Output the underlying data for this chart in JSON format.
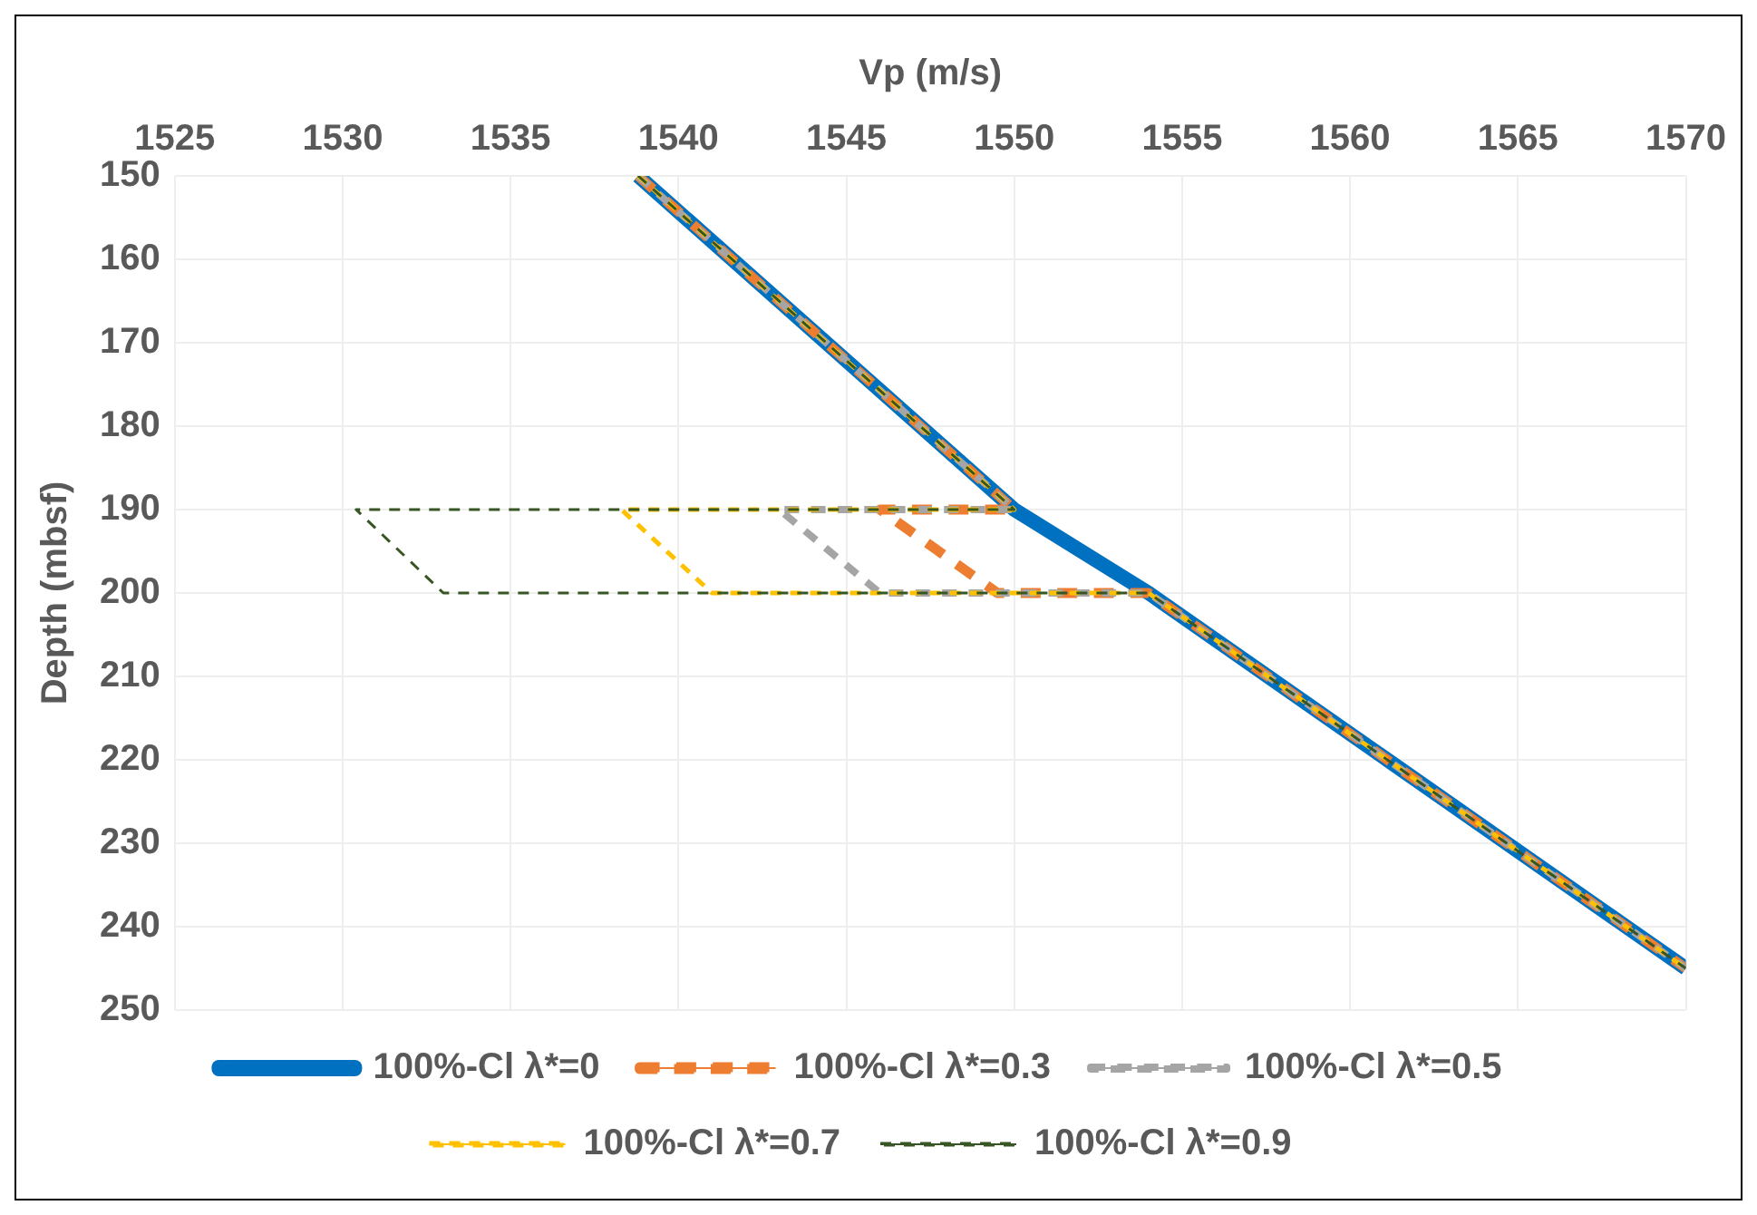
{
  "chart_data": {
    "type": "line",
    "xlabel": "Vp (m/s)",
    "ylabel": "Depth (mbsf)",
    "xlim": [
      1525,
      1570
    ],
    "xticks": [
      1525,
      1530,
      1535,
      1540,
      1545,
      1550,
      1555,
      1560,
      1565,
      1570
    ],
    "ylim": [
      250,
      150
    ],
    "yticks": [
      150,
      160,
      170,
      180,
      190,
      200,
      210,
      220,
      230,
      240,
      250
    ],
    "grid": true,
    "legend": "bottom",
    "marker": "none",
    "series": [
      {
        "name": "100%-Cl λ*=0",
        "color": "#0070c0",
        "line_style": "solid",
        "x": [
          1538.8,
          1550,
          1554,
          1570
        ],
        "values": [
          150,
          190,
          200,
          245
        ]
      },
      {
        "name": "100%-Cl λ*=0.3",
        "color": "#ed7d31",
        "line_style": "dashed",
        "x": [
          1538.8,
          1550,
          1546,
          1549.5,
          1554,
          1570
        ],
        "values": [
          150,
          190,
          190,
          200,
          200,
          245
        ]
      },
      {
        "name": "100%-Cl λ*=0.5",
        "color": "#a5a5a5",
        "line_style": "dashed",
        "x": [
          1538.8,
          1550,
          1543,
          1546,
          1554,
          1570
        ],
        "values": [
          150,
          190,
          190,
          200,
          200,
          245
        ]
      },
      {
        "name": "100%-Cl λ*=0.7",
        "color": "#ffc000",
        "line_style": "dashed",
        "x": [
          1538.8,
          1550,
          1538.3,
          1541,
          1554,
          1570
        ],
        "values": [
          150,
          190,
          190,
          200,
          200,
          245
        ]
      },
      {
        "name": "100%-Cl λ*=0.9",
        "color": "#375623",
        "line_style": "dashed",
        "x": [
          1538.8,
          1550,
          1530.4,
          1533,
          1554,
          1570
        ],
        "values": [
          150,
          190,
          190,
          200,
          200,
          245
        ]
      }
    ]
  }
}
